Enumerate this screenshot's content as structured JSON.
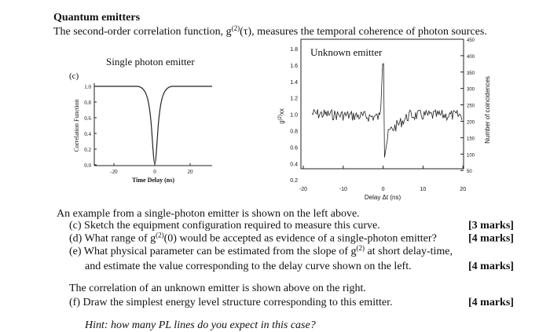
{
  "header": {
    "title": "Quantum emitters",
    "intro": [
      "The second-order correlation function, g",
      "(2)",
      "(τ), measures the temporal coherence of photon sources."
    ]
  },
  "left_figure": {
    "label": "(c)",
    "title": "Single photon emitter",
    "ylabel": "Correlation Function",
    "xlabel": "Time Delay (ns)",
    "yticks": [
      "1.0",
      "0.8",
      "0.6",
      "0.4",
      "0.2",
      "0.0"
    ],
    "xticks": [
      "-20",
      "0",
      "20"
    ]
  },
  "right_figure": {
    "title": "Unknown emitter",
    "ylabel": [
      "g",
      "(2)",
      "xx"
    ],
    "y2label": "Number of coincidences",
    "xlabel": "Delay Δt (ns)",
    "yticks": [
      "1.8",
      "1.6",
      "1.4",
      "1.2",
      "1.0",
      "0.8",
      "0.6",
      "0.4",
      "0.2"
    ],
    "xticks": [
      "-20",
      "-10",
      "0",
      "10",
      "20"
    ],
    "y2ticks": [
      "450",
      "400",
      "350",
      "300",
      "250",
      "200",
      "150",
      "100",
      "50"
    ]
  },
  "questions": {
    "lead": "An example from a single-photon emitter is shown on the left above.",
    "items": [
      {
        "text": [
          "(c) Sketch the equipment configuration required to measure this curve."
        ],
        "marks": "[3 marks]"
      },
      {
        "text": [
          "(d) What range of g",
          "(2)",
          "(0) would be accepted as evidence of a single-photon emitter?"
        ],
        "marks": "[4 marks]"
      },
      {
        "text": [
          "(e) What physical parameter can be estimated from the slope of g",
          "(2)",
          " at short delay-time,"
        ],
        "continuation": "and estimate the value corresponding to the delay curve shown on the left.",
        "marks": "[4 marks]"
      }
    ],
    "lead2": "The correlation of an unknown emitter is shown above on the right.",
    "items2": [
      {
        "text": [
          "(f) Draw the simplest energy level structure corresponding to this emitter."
        ],
        "marks": "[4 marks]"
      }
    ],
    "hint": "Hint: how many PL lines do you expect in this case?"
  }
}
